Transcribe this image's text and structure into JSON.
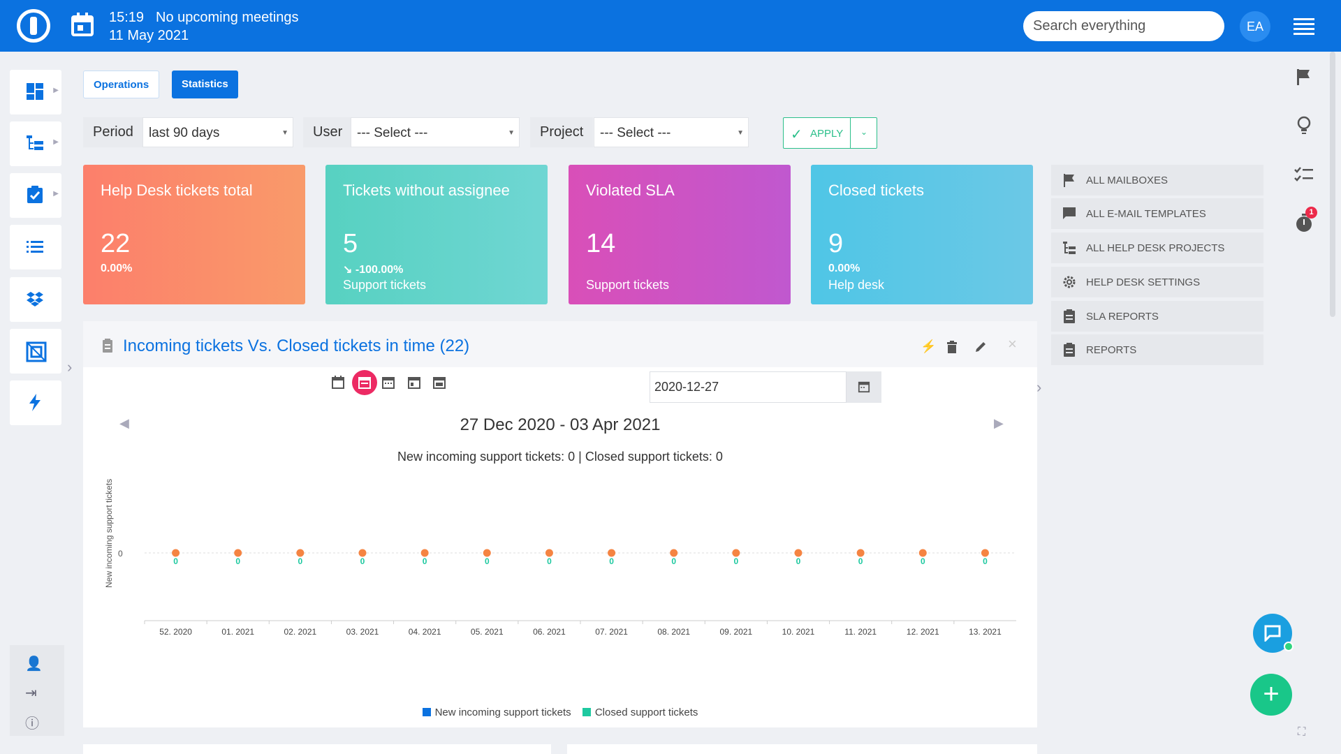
{
  "topbar": {
    "time": "15:19",
    "meeting": "No upcoming meetings",
    "date": "11 May 2021",
    "search_placeholder": "Search everything",
    "avatar_initials": "EA"
  },
  "tabs": [
    {
      "label": "Operations"
    },
    {
      "label": "Statistics"
    }
  ],
  "filters": {
    "period_label": "Period",
    "period_value": "last 90 days",
    "user_label": "User",
    "user_value": "--- Select ---",
    "project_label": "Project",
    "project_value": "--- Select ---",
    "apply_label": "APPLY"
  },
  "cards": [
    {
      "title": "Help Desk tickets total",
      "value": "22",
      "percent": "0.00%",
      "subtitle": ""
    },
    {
      "title": "Tickets without assignee",
      "value": "5",
      "percent": "-100.00%",
      "subtitle": "Support tickets"
    },
    {
      "title": "Violated SLA",
      "value": "14",
      "percent": "",
      "subtitle": "Support tickets"
    },
    {
      "title": "Closed tickets",
      "value": "9",
      "percent": "0.00%",
      "subtitle": "Help desk"
    }
  ],
  "right_menu": [
    {
      "label": "ALL MAILBOXES",
      "icon": "flag-icon"
    },
    {
      "label": "ALL E-MAIL TEMPLATES",
      "icon": "message-icon"
    },
    {
      "label": "ALL HELP DESK PROJECTS",
      "icon": "tree-icon"
    },
    {
      "label": "HELP DESK SETTINGS",
      "icon": "gear-icon"
    },
    {
      "label": "SLA REPORTS",
      "icon": "clipboard-icon"
    },
    {
      "label": "REPORTS",
      "icon": "clipboard-icon"
    }
  ],
  "right_tools": {
    "timer_badge": "1"
  },
  "panel": {
    "title": "Incoming tickets Vs. Closed tickets in time (22)",
    "date_value": "2020-12-27",
    "range": "27 Dec 2020 - 03 Apr 2021",
    "summary": "New incoming support tickets: 0 | Closed support tickets: 0"
  },
  "chart_data": {
    "type": "line",
    "title": "",
    "ylabel": "New incoming support tickets",
    "xlabel": "",
    "categories": [
      "52. 2020",
      "01. 2021",
      "02. 2021",
      "03. 2021",
      "04. 2021",
      "05. 2021",
      "06. 2021",
      "07. 2021",
      "08. 2021",
      "09. 2021",
      "10. 2021",
      "11. 2021",
      "12. 2021",
      "13. 2021"
    ],
    "yticks": [
      "0"
    ],
    "series": [
      {
        "name": "New incoming support tickets",
        "color": "#f58442",
        "values": [
          0,
          0,
          0,
          0,
          0,
          0,
          0,
          0,
          0,
          0,
          0,
          0,
          0,
          0
        ]
      },
      {
        "name": "Closed support tickets",
        "color": "#1ec9a0",
        "values": [
          0,
          0,
          0,
          0,
          0,
          0,
          0,
          0,
          0,
          0,
          0,
          0,
          0,
          0
        ]
      }
    ],
    "legend": [
      {
        "name": "New incoming support tickets",
        "color": "#0b72e0"
      },
      {
        "name": "Closed support tickets",
        "color": "#1ec9a0"
      }
    ]
  }
}
